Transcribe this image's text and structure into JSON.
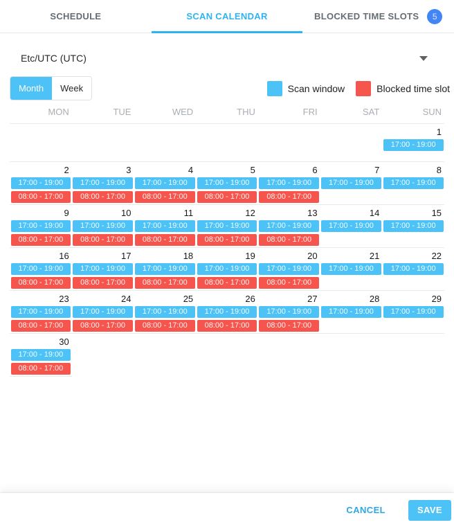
{
  "tabs": {
    "active_index": 1,
    "items": [
      {
        "label": "SCHEDULE"
      },
      {
        "label": "SCAN CALENDAR"
      },
      {
        "label": "BLOCKED TIME SLOTS",
        "badge": "5"
      }
    ]
  },
  "timezone": {
    "value": "Etc/UTC (UTC)"
  },
  "view_toggle": {
    "month_label": "Month",
    "week_label": "Week",
    "selected": "Month"
  },
  "legend": {
    "scan": {
      "label": "Scan window",
      "color": "#4cc2f6"
    },
    "blocked": {
      "label": "Blocked time slot",
      "color": "#f5554c"
    }
  },
  "calendar": {
    "day_headers": [
      "MON",
      "TUE",
      "WED",
      "THU",
      "FRI",
      "SAT",
      "SUN"
    ],
    "scan_window_time": "17:00 - 19:00",
    "blocked_time": "08:00 - 17:00",
    "weeks": [
      [
        null,
        null,
        null,
        null,
        null,
        null,
        {
          "day": 1,
          "scan": true
        }
      ],
      [
        {
          "day": 2,
          "scan": true,
          "blocked": true
        },
        {
          "day": 3,
          "scan": true,
          "blocked": true
        },
        {
          "day": 4,
          "scan": true,
          "blocked": true
        },
        {
          "day": 5,
          "scan": true,
          "blocked": true
        },
        {
          "day": 6,
          "scan": true,
          "blocked": true
        },
        {
          "day": 7,
          "scan": true
        },
        {
          "day": 8,
          "scan": true
        }
      ],
      [
        {
          "day": 9,
          "scan": true,
          "blocked": true
        },
        {
          "day": 10,
          "scan": true,
          "blocked": true
        },
        {
          "day": 11,
          "scan": true,
          "blocked": true
        },
        {
          "day": 12,
          "scan": true,
          "blocked": true
        },
        {
          "day": 13,
          "scan": true,
          "blocked": true
        },
        {
          "day": 14,
          "scan": true
        },
        {
          "day": 15,
          "scan": true
        }
      ],
      [
        {
          "day": 16,
          "scan": true,
          "blocked": true
        },
        {
          "day": 17,
          "scan": true,
          "blocked": true
        },
        {
          "day": 18,
          "scan": true,
          "blocked": true
        },
        {
          "day": 19,
          "scan": true,
          "blocked": true
        },
        {
          "day": 20,
          "scan": true,
          "blocked": true
        },
        {
          "day": 21,
          "scan": true
        },
        {
          "day": 22,
          "scan": true
        }
      ],
      [
        {
          "day": 23,
          "scan": true,
          "blocked": true
        },
        {
          "day": 24,
          "scan": true,
          "blocked": true
        },
        {
          "day": 25,
          "scan": true,
          "blocked": true
        },
        {
          "day": 26,
          "scan": true,
          "blocked": true
        },
        {
          "day": 27,
          "scan": true,
          "blocked": true
        },
        {
          "day": 28,
          "scan": true
        },
        {
          "day": 29,
          "scan": true
        }
      ],
      [
        {
          "day": 30,
          "scan": true,
          "blocked": true
        },
        null,
        null,
        null,
        null,
        null,
        null
      ]
    ]
  },
  "footer": {
    "cancel_label": "CANCEL",
    "save_label": "SAVE"
  },
  "colors": {
    "accent": "#2eb3f0",
    "scan": "#4cc2f6",
    "blocked": "#f5554c",
    "badge": "#4285f4",
    "cancel": "#2ea7e6"
  }
}
